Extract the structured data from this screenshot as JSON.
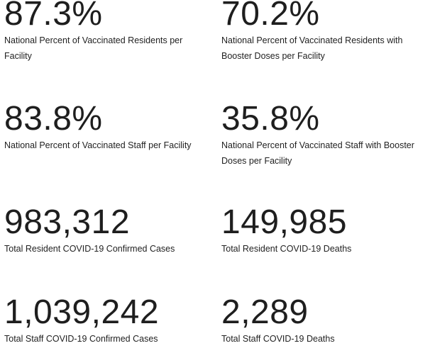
{
  "stats": [
    {
      "value": "87.3%",
      "label": "National Percent of Vaccinated Residents per Facility"
    },
    {
      "value": "70.2%",
      "label": "National Percent of Vaccinated Residents with Booster Doses per Facility"
    },
    {
      "value": "83.8%",
      "label": "National Percent of Vaccinated Staff per Facility"
    },
    {
      "value": "35.8%",
      "label": "National Percent of Vaccinated Staff with Booster Doses per Facility"
    },
    {
      "value": "983,312",
      "label": "Total Resident COVID-19 Confirmed Cases"
    },
    {
      "value": "149,985",
      "label": "Total Resident COVID-19 Deaths"
    },
    {
      "value": "1,039,242",
      "label": "Total Staff COVID-19 Confirmed Cases"
    },
    {
      "value": "2,289",
      "label": "Total Staff COVID-19 Deaths"
    }
  ]
}
